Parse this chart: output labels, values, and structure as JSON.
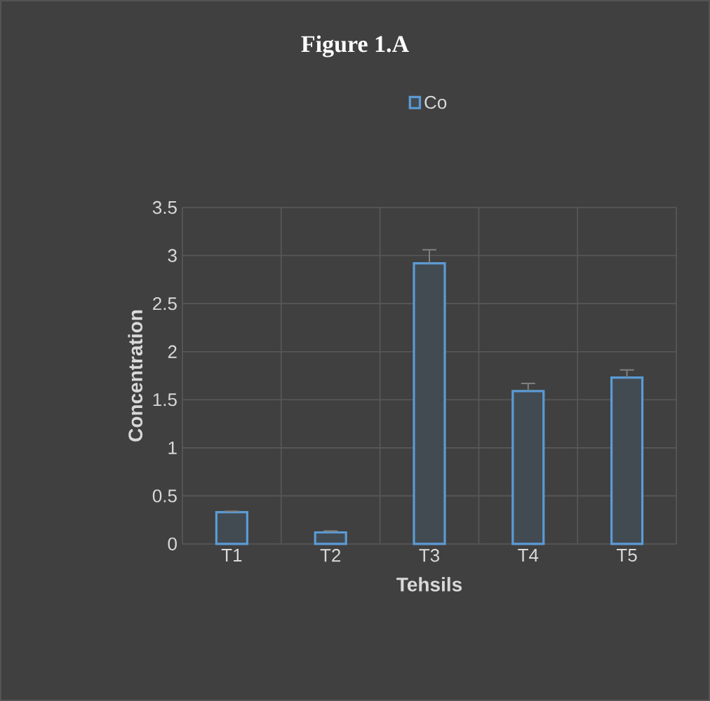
{
  "chart_data": {
    "type": "bar",
    "title": "Figure 1.A",
    "xlabel": "Tehsils",
    "ylabel": "Concentration",
    "categories": [
      "T1",
      "T2",
      "T3",
      "T4",
      "T5"
    ],
    "series": [
      {
        "name": "Co",
        "color": "#5b9bd5",
        "values": [
          0.33,
          0.12,
          2.92,
          1.59,
          1.73
        ],
        "errors": [
          [
            0.33,
            0.34
          ],
          [
            0.12,
            0.135
          ],
          [
            2.92,
            3.06
          ],
          [
            1.59,
            1.67
          ],
          [
            1.73,
            1.81
          ]
        ]
      }
    ],
    "ylim": [
      0,
      3.5
    ],
    "yticks": [
      0,
      0.5,
      1,
      1.5,
      2,
      2.5,
      3,
      3.5
    ],
    "grid": true,
    "legend": "top"
  }
}
